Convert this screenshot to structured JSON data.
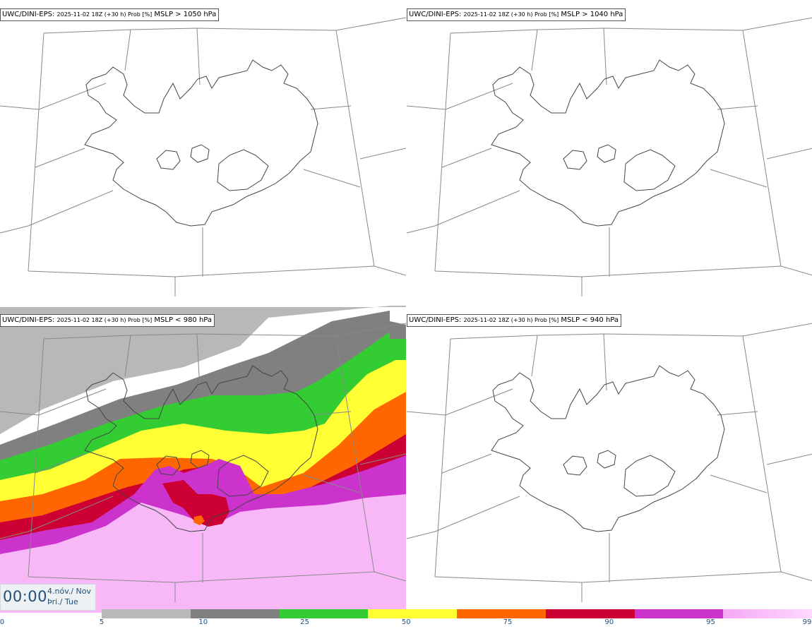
{
  "panels": [
    {
      "model": "UWC/DINI-EPS",
      "meta": "2025-11-02 18Z (+30 h) Prob [%]",
      "variable": "MSLP > 1050 hPa"
    },
    {
      "model": "UWC/DINI-EPS",
      "meta": "2025-11-02 18Z (+30 h) Prob [%]",
      "variable": "MSLP > 1040 hPa"
    },
    {
      "model": "UWC/DINI-EPS",
      "meta": "2025-11-02 18Z (+30 h) Prob [%]",
      "variable": "MSLP < 980 hPa"
    },
    {
      "model": "UWC/DINI-EPS",
      "meta": "2025-11-02 18Z (+30 h) Prob [%]",
      "variable": "MSLP < 940 hPa"
    }
  ],
  "time": {
    "clock": "00:00",
    "date_line1": "4.nóv./ Nov",
    "date_line2": "Þri./ Tue"
  },
  "legend": {
    "ticks": [
      "0",
      "5",
      "10",
      "25",
      "50",
      "75",
      "90",
      "95",
      "99"
    ],
    "colors": [
      "#b8b8b8",
      "#808080",
      "#33cc33",
      "#ffff33",
      "#ff6600",
      "#cc0033",
      "#cc33cc",
      "#f8b8f8"
    ]
  }
}
